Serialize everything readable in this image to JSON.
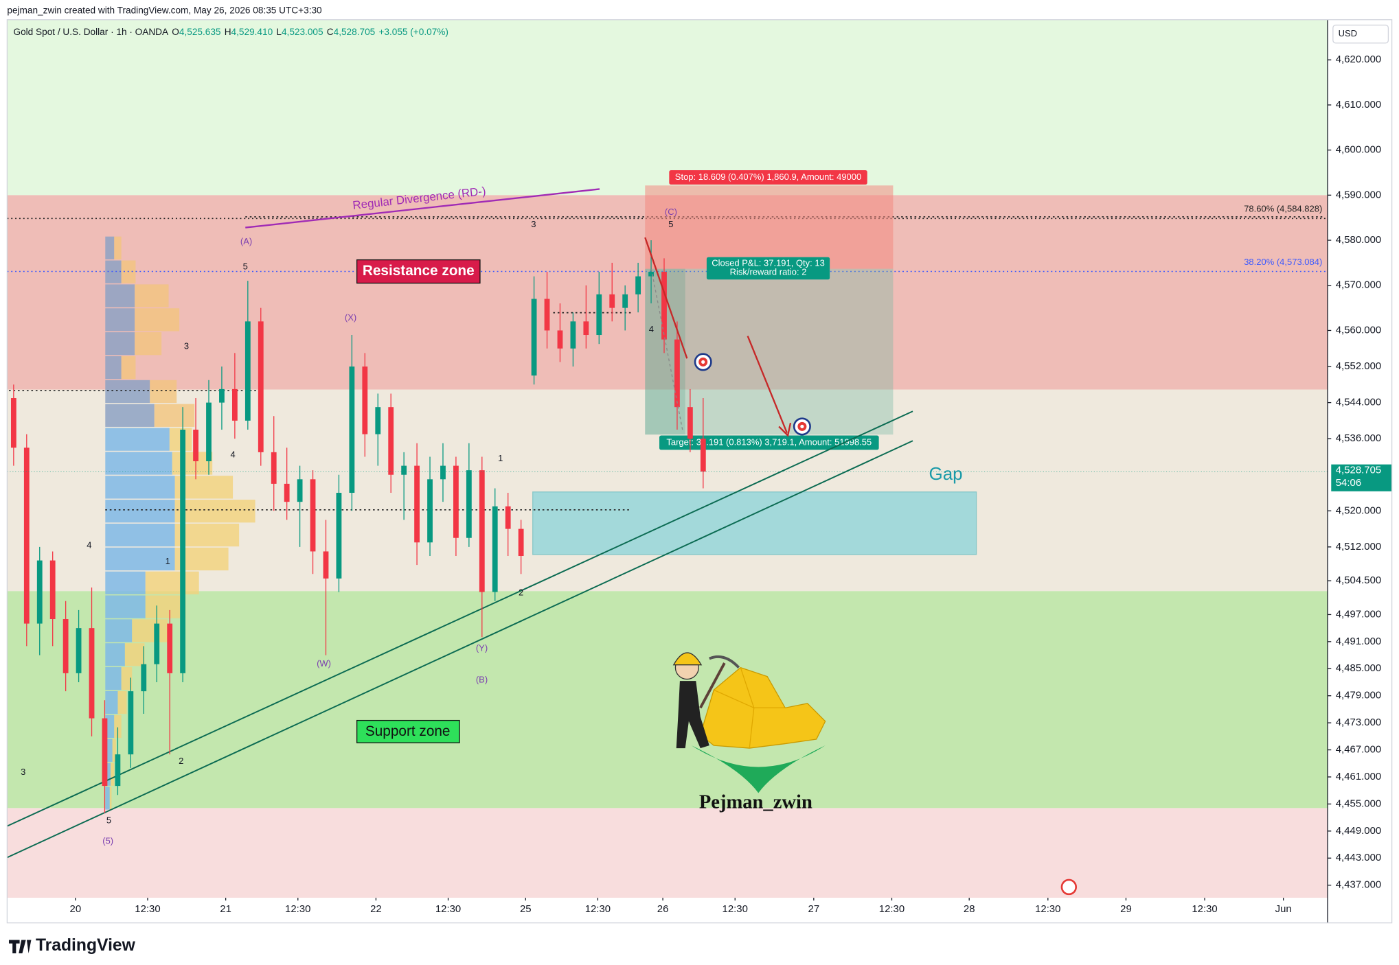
{
  "header": {
    "credit": "pejman_zwin created with TradingView.com, May 26, 2026 08:35 UTC+3:30",
    "logo": "TradingView"
  },
  "chart_data": {
    "type": "candlestick",
    "symbol": "Gold Spot / U.S. Dollar · 1h · OANDA",
    "ohlc": [
      {
        "label": "O",
        "value": "4,525.635"
      },
      {
        "label": "H",
        "value": "4,529.410"
      },
      {
        "label": "L",
        "value": "4,523.005"
      },
      {
        "label": "C",
        "value": "4,528.705"
      }
    ],
    "change": "+3.055 (+0.07%)",
    "currency": "USD",
    "up_color": "#089981",
    "down_color": "#f23645",
    "xlim": [
      0,
      203
    ],
    "xticks": [
      {
        "value": 10.5,
        "label": "20"
      },
      {
        "value": 21.6,
        "label": "12:30"
      },
      {
        "value": 33.6,
        "label": "21"
      },
      {
        "value": 44.7,
        "label": "12:30"
      },
      {
        "value": 56.7,
        "label": "22"
      },
      {
        "value": 67.8,
        "label": "12:30"
      },
      {
        "value": 79.7,
        "label": "25"
      },
      {
        "value": 90.8,
        "label": "12:30"
      },
      {
        "value": 100.8,
        "label": "26"
      },
      {
        "value": 111.9,
        "label": "12:30"
      },
      {
        "value": 124,
        "label": "27"
      },
      {
        "value": 136,
        "label": "12:30"
      },
      {
        "value": 147.9,
        "label": "28"
      },
      {
        "value": 160,
        "label": "12:30"
      },
      {
        "value": 172,
        "label": "29"
      },
      {
        "value": 184.1,
        "label": "12:30"
      },
      {
        "value": 196.2,
        "label": "Jun"
      }
    ],
    "ylim": [
      4434.2,
      4628.9
    ],
    "yticks": [
      {
        "value": 4620,
        "label": "4,620.000"
      },
      {
        "value": 4610,
        "label": "4,610.000"
      },
      {
        "value": 4600,
        "label": "4,600.000"
      },
      {
        "value": 4590,
        "label": "4,590.000"
      },
      {
        "value": 4580,
        "label": "4,580.000"
      },
      {
        "value": 4570,
        "label": "4,570.000"
      },
      {
        "value": 4560,
        "label": "4,560.000"
      },
      {
        "value": 4552,
        "label": "4,552.000"
      },
      {
        "value": 4544,
        "label": "4,544.000"
      },
      {
        "value": 4536,
        "label": "4,536.000"
      },
      {
        "value": 4520,
        "label": "4,520.000"
      },
      {
        "value": 4512,
        "label": "4,512.000"
      },
      {
        "value": 4504.5,
        "label": "4,504.500"
      },
      {
        "value": 4497,
        "label": "4,497.000"
      },
      {
        "value": 4491,
        "label": "4,491.000"
      },
      {
        "value": 4485,
        "label": "4,485.000"
      },
      {
        "value": 4479,
        "label": "4,479.000"
      },
      {
        "value": 4473,
        "label": "4,473.000"
      },
      {
        "value": 4467,
        "label": "4,467.000"
      },
      {
        "value": 4461,
        "label": "4,461.000"
      },
      {
        "value": 4455,
        "label": "4,455.000"
      },
      {
        "value": 4449,
        "label": "4,449.000"
      },
      {
        "value": 4443,
        "label": "4,443.000"
      },
      {
        "value": 4437,
        "label": "4,437.000"
      }
    ],
    "candles": {
      "x": [
        1,
        3,
        5,
        7,
        9,
        11,
        13,
        15,
        17,
        19,
        21,
        23,
        25,
        27,
        29,
        31,
        33,
        35,
        37,
        39,
        41,
        43,
        45,
        47,
        49,
        51,
        53,
        55,
        57,
        59,
        61,
        63,
        65,
        67,
        69,
        71,
        73,
        75,
        77,
        79,
        81,
        83,
        85,
        87,
        89,
        91,
        93,
        95,
        97,
        99,
        101,
        103,
        105,
        107
      ],
      "open": [
        4545,
        4534,
        4495,
        4509,
        4496,
        4484,
        4494,
        4474,
        4459,
        4466,
        4480,
        4486,
        4495,
        4484,
        4538,
        4531,
        4544,
        4547,
        4540,
        4562,
        4533,
        4526,
        4522,
        4527,
        4511,
        4505,
        4524,
        4552,
        4537,
        4543,
        4528,
        4530,
        4513,
        4527,
        4530,
        4514,
        4529,
        4502,
        4521,
        4516,
        4550,
        4567,
        4560,
        4556,
        4562,
        4559,
        4568,
        4565,
        4568,
        4572,
        4573,
        4558,
        4543,
        4536
      ],
      "high": [
        4548,
        4537,
        4512,
        4511,
        4500,
        4498,
        4503,
        4478,
        4472,
        4483,
        4490,
        4499,
        4498,
        4543,
        4545,
        4549,
        4552,
        4555,
        4571,
        4565,
        4541,
        4534,
        4530,
        4529,
        4518,
        4528,
        4559,
        4555,
        4546,
        4546,
        4533,
        4535,
        4532,
        4535,
        4532,
        4535,
        4532,
        4525,
        4524,
        4518,
        4572,
        4573,
        4566,
        4564,
        4570,
        4573,
        4575,
        4570,
        4575,
        4580,
        4576,
        4562,
        4547,
        4545
      ],
      "low": [
        4530,
        4490,
        4488,
        4490,
        4480,
        4482,
        4470,
        4453,
        4457,
        4463,
        4475,
        4482,
        4466,
        4482,
        4527,
        4528,
        4538,
        4536,
        4538,
        4530,
        4520,
        4518,
        4512,
        4506,
        4488,
        4502,
        4520,
        4532,
        4530,
        4524,
        4518,
        4508,
        4510,
        4522,
        4510,
        4512,
        4492,
        4500,
        4510,
        4506,
        4548,
        4556,
        4553,
        4552,
        4556,
        4557,
        4562,
        4560,
        4564,
        4566,
        4555,
        4538,
        4533,
        4525
      ],
      "close": [
        4534,
        4495,
        4509,
        4496,
        4484,
        4494,
        4474,
        4459,
        4466,
        4480,
        4486,
        4495,
        4484,
        4538,
        4531,
        4544,
        4547,
        4540,
        4562,
        4533,
        4526,
        4522,
        4527,
        4511,
        4505,
        4524,
        4552,
        4537,
        4543,
        4528,
        4530,
        4513,
        4527,
        4530,
        4514,
        4529,
        4502,
        4521,
        4516,
        4510,
        4567,
        4560,
        4556,
        4562,
        4559,
        4568,
        4565,
        4568,
        4572,
        4573,
        4558,
        4543,
        4536,
        4528.705
      ]
    },
    "last_price": {
      "value": 4528.705,
      "label": "4,528.705",
      "countdown": "54:06"
    },
    "zones": [
      {
        "label": "Resistance zone",
        "range": [
          4546.9,
          4590
        ],
        "color": "#efbdb7"
      },
      {
        "label": "Support zone",
        "range": [
          4454.1,
          4502.2
        ],
        "color": "#c3e7ae"
      },
      {
        "label": "Gap",
        "range": [
          4510.3,
          4524.2
        ],
        "xrange": [
          80.8,
          149
        ],
        "color": "#a3d9da"
      }
    ],
    "fib_levels": [
      {
        "label": "78.60% (4,584.828)",
        "value": 4584.828,
        "color": "#222222"
      },
      {
        "label": "38.20% (4,573.084)",
        "value": 4573.084,
        "color": "#3d5afe"
      }
    ],
    "position": {
      "stop": "Stop: 18.609 (0.407%) 1,860.9, Amount: 49000",
      "closed": "Closed P&L: 37.191, Qty: 13",
      "ratio": "Risk/reward ratio: 2",
      "target": "Target: 37.191 (0.813%) 3,719.1, Amount: 51998.55"
    },
    "divergence": "Regular Divergence (RD-)",
    "wave_labels": [
      "3",
      "4",
      "5",
      "(5)",
      "3",
      "1",
      "2",
      "4",
      "5",
      "(A)",
      "(X)",
      "(W)",
      "1",
      "2",
      "(Y)",
      "(B)",
      "3",
      "5",
      "(C)",
      "4"
    ],
    "author": "Pejman_zwin"
  }
}
